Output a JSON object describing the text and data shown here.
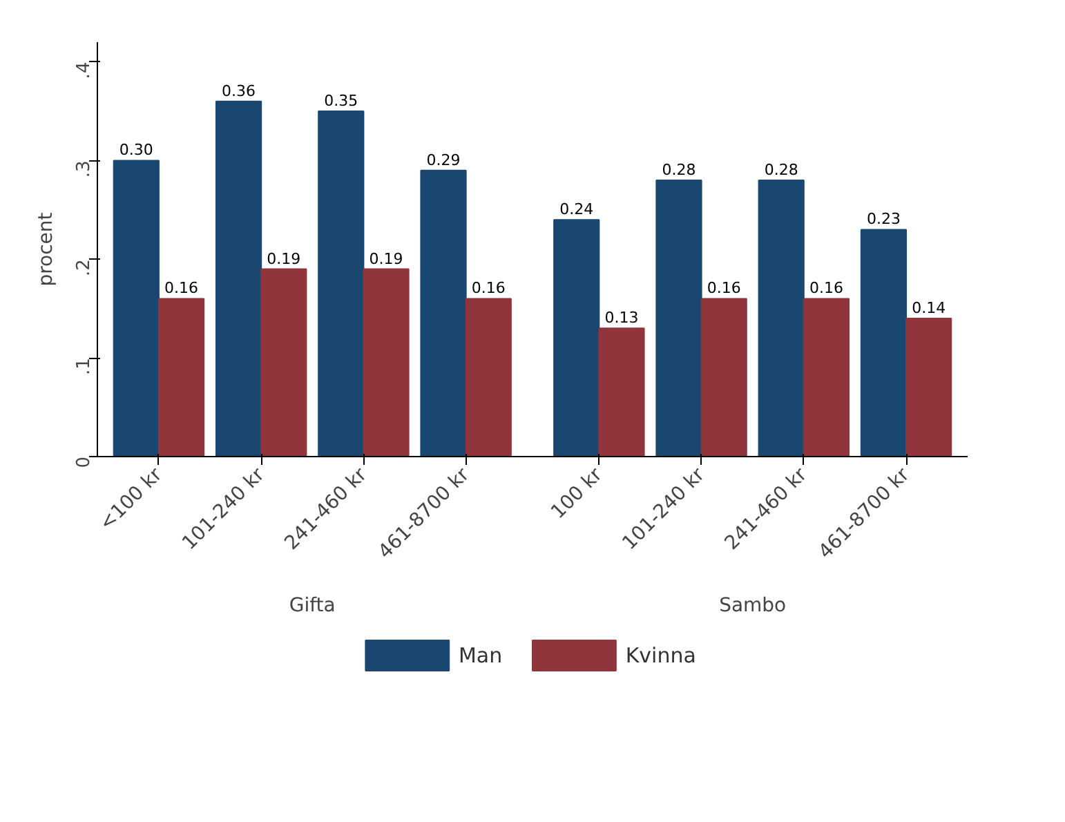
{
  "chart_data": {
    "type": "bar",
    "ylabel": "procent",
    "categories": [
      "<100 kr",
      "101-240 kr",
      "241-460 kr",
      "461-8700 kr",
      "100 kr",
      "101-240 kr",
      "241-460 kr",
      "461-8700 kr"
    ],
    "series": [
      {
        "name": "Man",
        "color": "#1a476f",
        "values": [
          0.3,
          0.36,
          0.35,
          0.29,
          0.24,
          0.28,
          0.28,
          0.23
        ],
        "value_labels": [
          "0.30",
          "0.36",
          "0.35",
          "0.29",
          "0.24",
          "0.28",
          "0.28",
          "0.23"
        ]
      },
      {
        "name": "Kvinna",
        "color": "#90353b",
        "values": [
          0.16,
          0.19,
          0.19,
          0.16,
          0.13,
          0.16,
          0.16,
          0.14
        ],
        "value_labels": [
          "0.16",
          "0.19",
          "0.19",
          "0.16",
          "0.13",
          "0.16",
          "0.16",
          "0.14"
        ]
      }
    ],
    "annotations": [
      "Gifta",
      "Sambo"
    ],
    "ylim": [
      0,
      0.42
    ],
    "yticks": [
      {
        "value": 0,
        "label": "0"
      },
      {
        "value": 0.1,
        "label": ".1"
      },
      {
        "value": 0.2,
        "label": ".2"
      },
      {
        "value": 0.3,
        "label": ".3"
      },
      {
        "value": 0.4,
        "label": ".4"
      }
    ],
    "grid": false,
    "legend": "bottom"
  }
}
